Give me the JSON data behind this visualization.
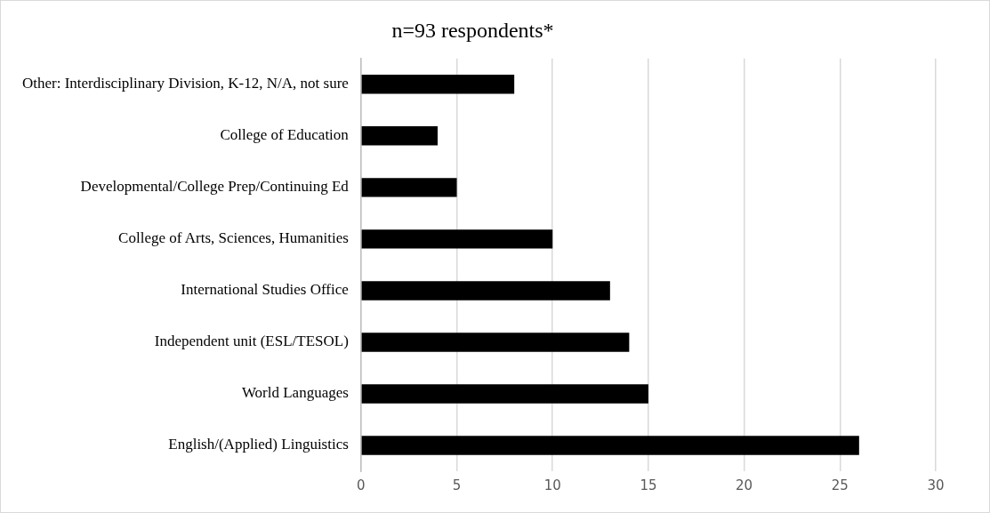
{
  "chart_data": {
    "type": "bar",
    "orientation": "horizontal",
    "title": "n=93 respondents*",
    "categories": [
      "Other: Interdisciplinary Division, K-12, N/A, not sure",
      "College of Education",
      "Developmental/College Prep/Continuing Ed",
      "College of Arts, Sciences, Humanities",
      "International Studies Office",
      "Independent unit (ESL/TESOL)",
      "World Languages",
      "English/(Applied) Linguistics"
    ],
    "values": [
      8,
      4,
      5,
      10,
      13,
      14,
      15,
      26
    ],
    "color": "#000000",
    "xlim": [
      0,
      30
    ],
    "xticks": [
      0,
      5,
      10,
      15,
      20,
      25,
      30
    ],
    "grid": "x",
    "legend": false
  }
}
